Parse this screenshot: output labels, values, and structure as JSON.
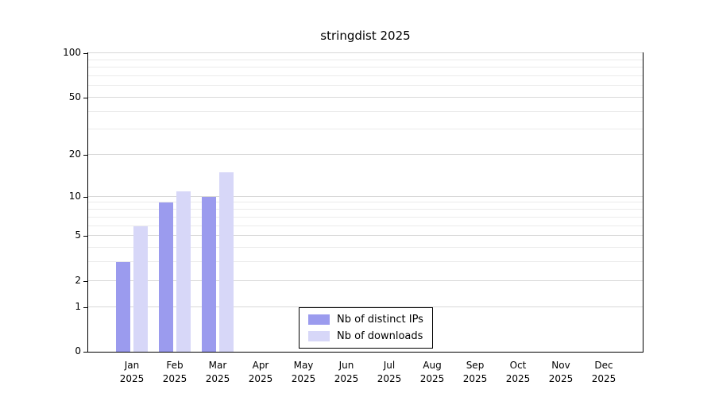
{
  "chart_data": {
    "type": "bar",
    "title": "stringdist 2025",
    "categories": [
      "Jan 2025",
      "Feb 2025",
      "Mar 2025",
      "Apr 2025",
      "May 2025",
      "Jun 2025",
      "Jul 2025",
      "Aug 2025",
      "Sep 2025",
      "Oct 2025",
      "Nov 2025",
      "Dec 2025"
    ],
    "series": [
      {
        "name": "Nb of distinct IPs",
        "color": "#9b9bee",
        "values": [
          3,
          9,
          10,
          0,
          0,
          0,
          0,
          0,
          0,
          0,
          0,
          0
        ]
      },
      {
        "name": "Nb of downloads",
        "color": "#d7d7f8",
        "values": [
          6,
          11,
          15,
          0,
          0,
          0,
          0,
          0,
          0,
          0,
          0,
          0
        ]
      }
    ],
    "y_axis": {
      "scale": "log1p",
      "ticks": [
        0,
        1,
        2,
        5,
        10,
        20,
        50,
        100
      ],
      "minor_ticks": [
        3,
        4,
        6,
        7,
        8,
        9,
        30,
        40,
        60,
        70,
        80,
        90
      ],
      "range": [
        0,
        100
      ]
    },
    "xlabel": "",
    "ylabel": "",
    "grid": "horizontal",
    "legend_position": "inside-bottom-center"
  },
  "colors": {
    "background": "#ffffff",
    "plot_border": "#000000",
    "grid_major": "#d8d8d8",
    "grid_minor": "#ebebeb",
    "text": "#000000"
  }
}
